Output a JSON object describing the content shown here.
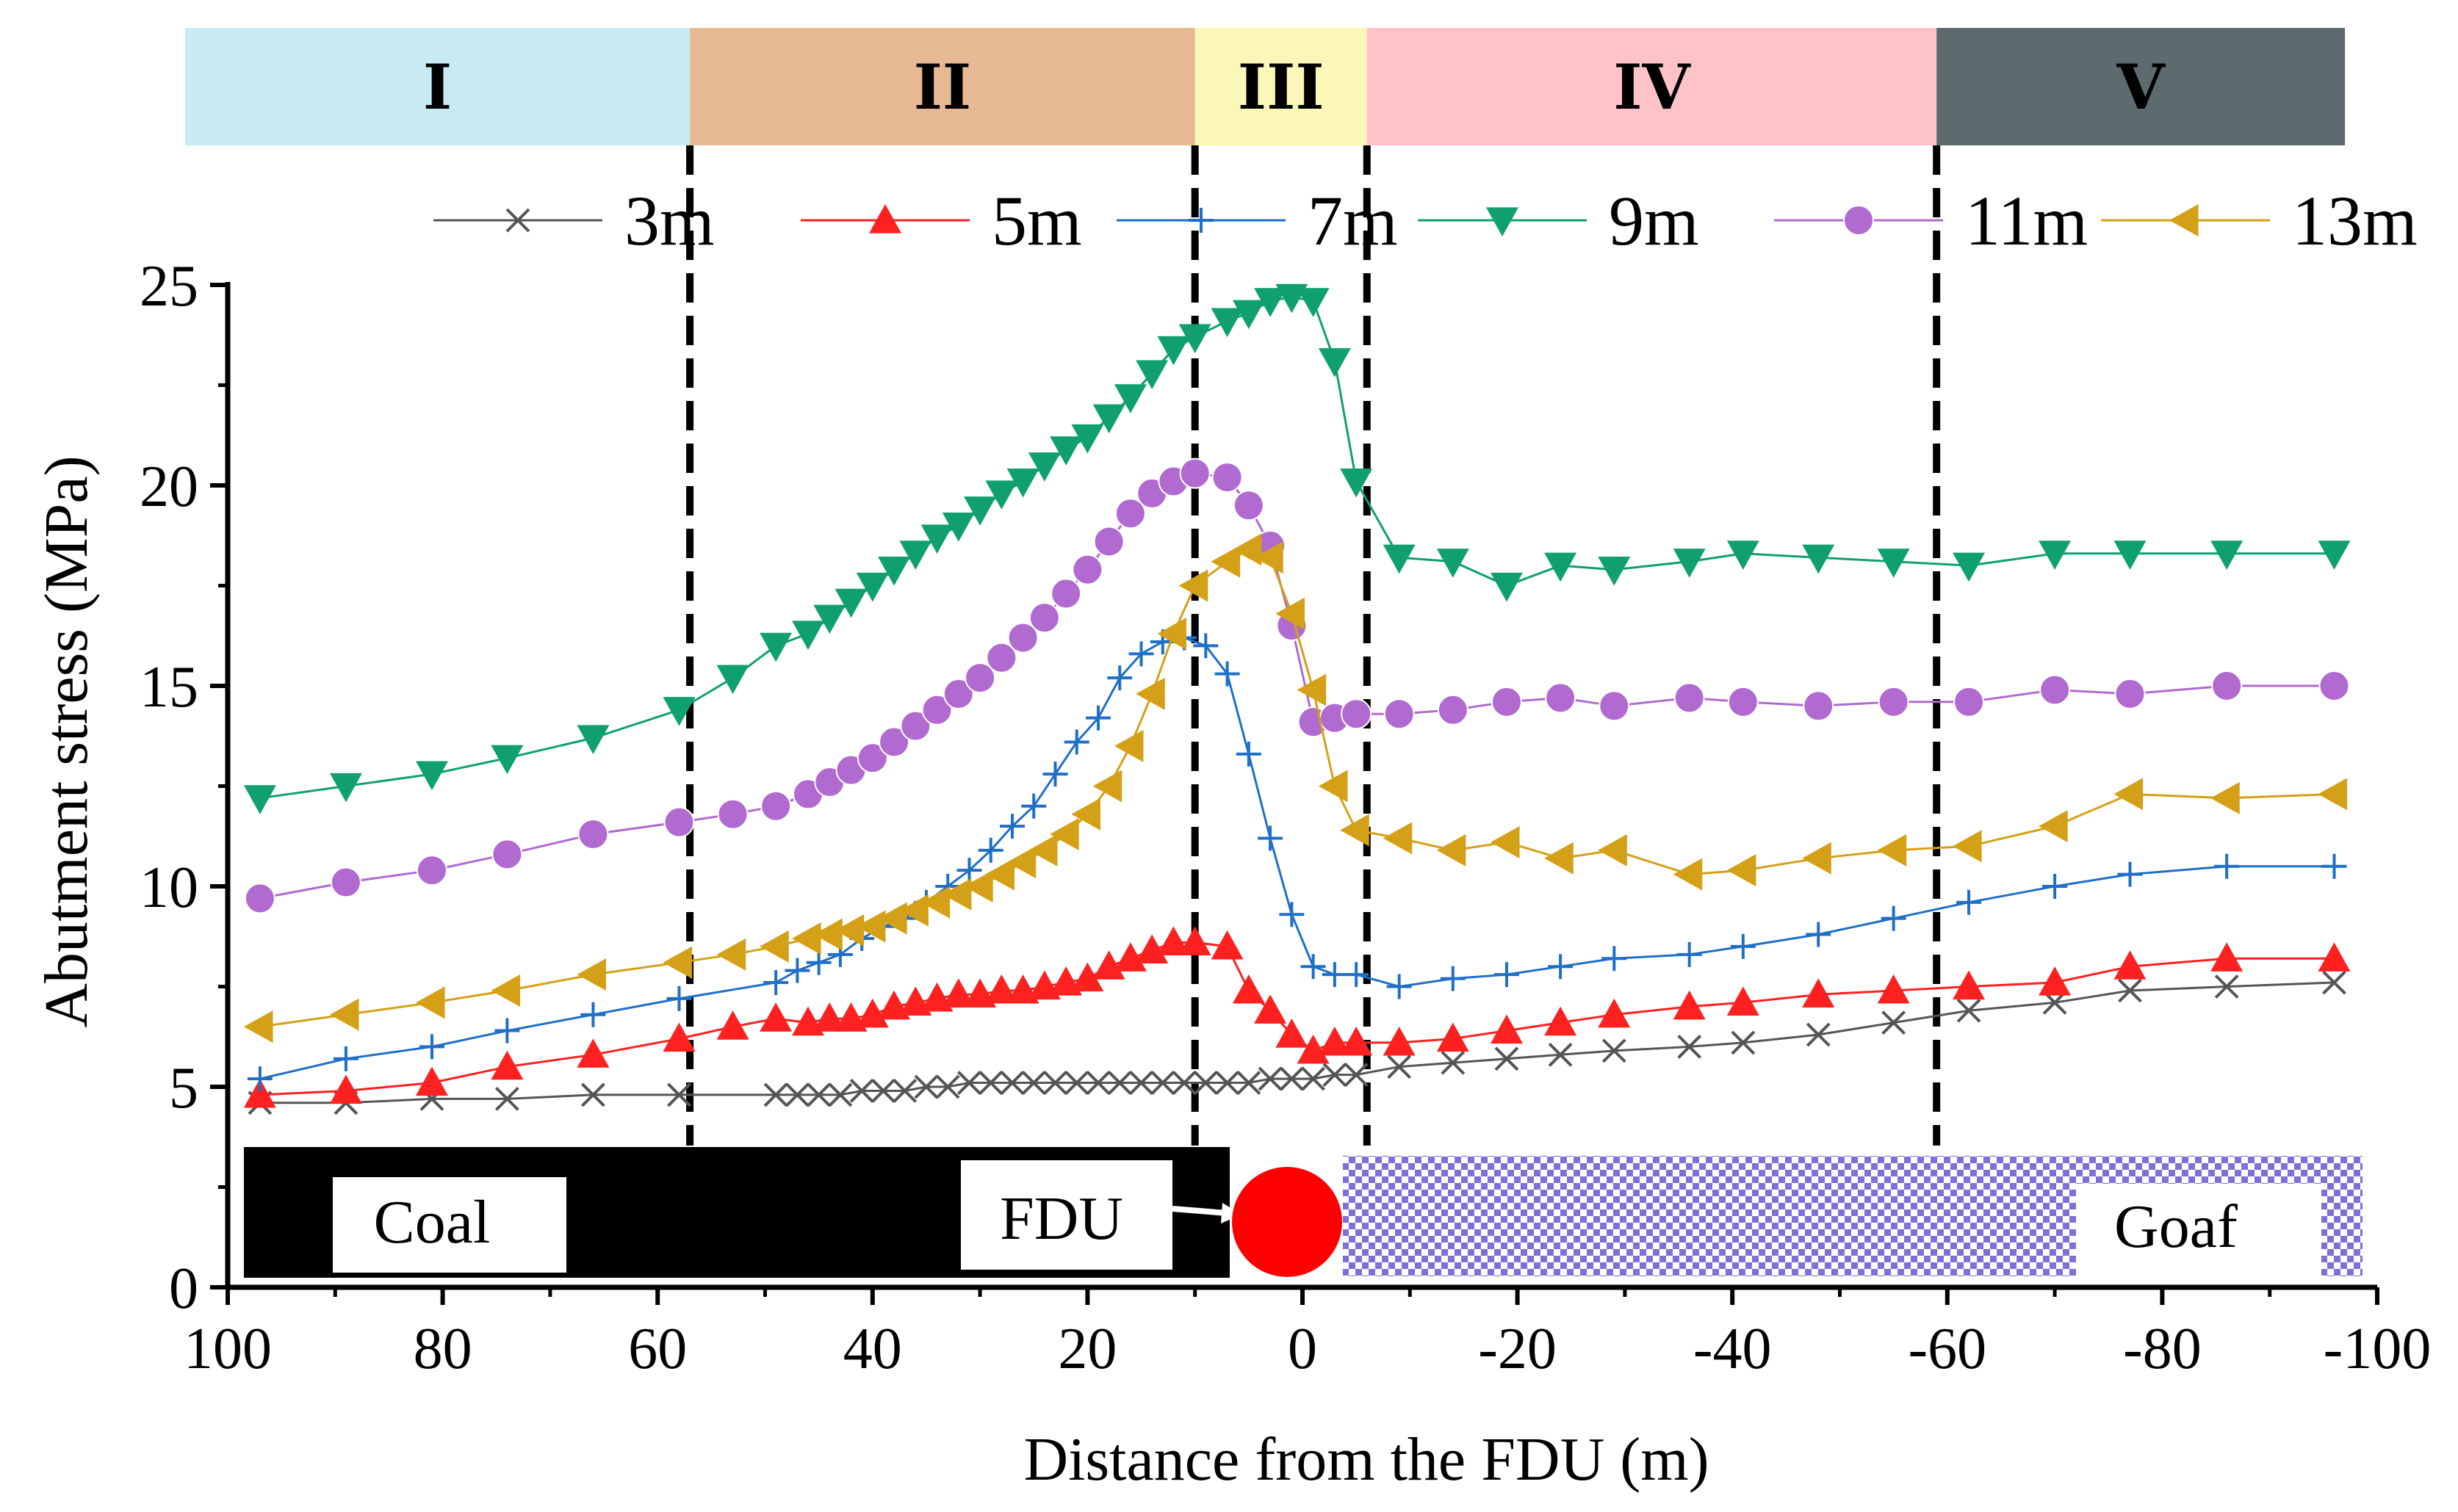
{
  "chart_data": {
    "type": "line",
    "title": "",
    "xlabel": "Distance from the FDU (m)",
    "ylabel": "Abutment stress (MPa)",
    "xlim": [
      100,
      -100
    ],
    "ylim": [
      0,
      25
    ],
    "x_ticks": [
      100,
      80,
      60,
      40,
      20,
      0,
      -20,
      -40,
      -60,
      -80,
      -100
    ],
    "y_ticks": [
      0,
      5,
      10,
      15,
      20,
      25
    ],
    "grid": false,
    "legend_position": "top",
    "zones": [
      {
        "label": "I",
        "x_start": 100,
        "x_end": 57,
        "color": "#c8ebf3"
      },
      {
        "label": "II",
        "x_start": 57,
        "x_end": 10,
        "color": "#e6b993"
      },
      {
        "label": "III",
        "x_start": 10,
        "x_end": -6,
        "color": "#fbf7b8"
      },
      {
        "label": "IV",
        "x_start": -6,
        "x_end": -59,
        "color": "#fec3c6"
      },
      {
        "label": "V",
        "x_start": -59,
        "x_end": -97,
        "color": "#5d6a6e"
      }
    ],
    "zone_boundaries": [
      57,
      10,
      -6,
      -59
    ],
    "annotations": {
      "coal_label": "Coal",
      "fdu_label": "FDU",
      "goaf_label": "Goaf"
    },
    "series": [
      {
        "name": "3m",
        "color": "#555555",
        "marker": "x",
        "x": [
          97,
          89,
          81,
          74,
          66,
          58,
          49,
          47,
          45,
          43,
          41,
          39,
          37,
          35,
          33,
          31,
          29,
          27,
          25,
          23,
          21,
          19,
          17,
          15,
          13,
          11,
          9,
          7,
          5,
          3,
          1,
          -1,
          -3,
          -5,
          -9,
          -14,
          -19,
          -24,
          -29,
          -36,
          -41,
          -48,
          -55,
          -62,
          -70,
          -77,
          -86,
          -96
        ],
        "values": [
          4.6,
          4.6,
          4.7,
          4.7,
          4.8,
          4.8,
          4.8,
          4.8,
          4.8,
          4.8,
          4.9,
          4.9,
          4.9,
          5.0,
          5.0,
          5.1,
          5.1,
          5.1,
          5.1,
          5.1,
          5.1,
          5.1,
          5.1,
          5.1,
          5.1,
          5.1,
          5.1,
          5.1,
          5.1,
          5.2,
          5.2,
          5.2,
          5.3,
          5.3,
          5.5,
          5.6,
          5.7,
          5.8,
          5.9,
          6.0,
          6.1,
          6.3,
          6.6,
          6.9,
          7.1,
          7.4,
          7.5,
          7.6
        ]
      },
      {
        "name": "5m",
        "color": "#ff2020",
        "marker": "triangle-up",
        "x": [
          97,
          89,
          81,
          74,
          66,
          58,
          53,
          49,
          46,
          44,
          42,
          40,
          38,
          36,
          34,
          32,
          30,
          28,
          26,
          24,
          22,
          20,
          18,
          16,
          14,
          12,
          10,
          7,
          5,
          3,
          1,
          -1,
          -3,
          -5,
          -9,
          -14,
          -19,
          -24,
          -29,
          -36,
          -41,
          -48,
          -55,
          -62,
          -70,
          -77,
          -86,
          -96
        ],
        "values": [
          4.8,
          4.9,
          5.1,
          5.5,
          5.8,
          6.2,
          6.5,
          6.7,
          6.6,
          6.7,
          6.7,
          6.8,
          7.0,
          7.1,
          7.2,
          7.3,
          7.3,
          7.4,
          7.4,
          7.5,
          7.6,
          7.7,
          8.0,
          8.2,
          8.4,
          8.6,
          8.6,
          8.5,
          7.4,
          6.9,
          6.3,
          5.9,
          6.1,
          6.1,
          6.1,
          6.2,
          6.4,
          6.6,
          6.8,
          7.0,
          7.1,
          7.3,
          7.4,
          7.5,
          7.6,
          8.0,
          8.2,
          8.2
        ]
      },
      {
        "name": "7m",
        "color": "#1f6fc8",
        "marker": "plus",
        "x": [
          97,
          89,
          81,
          74,
          66,
          58,
          49,
          47,
          45,
          43,
          41,
          39,
          37,
          35,
          33,
          31,
          29,
          27,
          25,
          23,
          21,
          19,
          17,
          15,
          13,
          11,
          9,
          7,
          5,
          3,
          1,
          -1,
          -3,
          -5,
          -9,
          -14,
          -19,
          -24,
          -29,
          -36,
          -41,
          -48,
          -55,
          -62,
          -70,
          -77,
          -86,
          -96
        ],
        "values": [
          5.2,
          5.7,
          6.0,
          6.4,
          6.8,
          7.2,
          7.6,
          7.9,
          8.1,
          8.3,
          8.7,
          9.0,
          9.2,
          9.6,
          10.0,
          10.4,
          10.9,
          11.5,
          12.0,
          12.8,
          13.6,
          14.2,
          15.2,
          15.8,
          16.1,
          16.2,
          16.0,
          15.3,
          13.3,
          11.2,
          9.3,
          8.0,
          7.8,
          7.8,
          7.5,
          7.7,
          7.8,
          8.0,
          8.2,
          8.3,
          8.5,
          8.8,
          9.2,
          9.6,
          10.0,
          10.3,
          10.5,
          10.5
        ]
      },
      {
        "name": "9m",
        "color": "#10a070",
        "marker": "triangle-down",
        "x": [
          97,
          89,
          81,
          74,
          66,
          58,
          53,
          49,
          46,
          44,
          42,
          40,
          38,
          36,
          34,
          32,
          30,
          28,
          26,
          24,
          22,
          20,
          18,
          16,
          14,
          12,
          10,
          7,
          5,
          3,
          1,
          -1,
          -3,
          -5,
          -9,
          -14,
          -19,
          -24,
          -29,
          -36,
          -41,
          -48,
          -55,
          -62,
          -70,
          -77,
          -86,
          -96
        ],
        "values": [
          12.2,
          12.5,
          12.8,
          13.2,
          13.7,
          14.4,
          15.2,
          16.0,
          16.3,
          16.7,
          17.1,
          17.5,
          17.9,
          18.3,
          18.7,
          19.0,
          19.4,
          19.8,
          20.1,
          20.5,
          20.9,
          21.2,
          21.7,
          22.2,
          22.8,
          23.4,
          23.7,
          24.1,
          24.3,
          24.6,
          24.7,
          24.6,
          23.1,
          20.1,
          18.2,
          18.1,
          17.5,
          18.0,
          17.9,
          18.1,
          18.3,
          18.2,
          18.1,
          18.0,
          18.3,
          18.3,
          18.3,
          18.3
        ]
      },
      {
        "name": "11m",
        "color": "#b06ad0",
        "marker": "circle",
        "x": [
          97,
          89,
          81,
          74,
          66,
          58,
          53,
          49,
          46,
          44,
          42,
          40,
          38,
          36,
          34,
          32,
          30,
          28,
          26,
          24,
          22,
          20,
          18,
          16,
          14,
          12,
          10,
          7,
          5,
          3,
          1,
          -1,
          -3,
          -5,
          -9,
          -14,
          -19,
          -24,
          -29,
          -36,
          -41,
          -48,
          -55,
          -62,
          -70,
          -77,
          -86,
          -96
        ],
        "values": [
          9.7,
          10.1,
          10.4,
          10.8,
          11.3,
          11.6,
          11.8,
          12.0,
          12.3,
          12.6,
          12.9,
          13.2,
          13.6,
          14.0,
          14.4,
          14.8,
          15.2,
          15.7,
          16.2,
          16.7,
          17.3,
          17.9,
          18.6,
          19.3,
          19.8,
          20.1,
          20.3,
          20.2,
          19.5,
          18.5,
          16.5,
          14.1,
          14.2,
          14.3,
          14.3,
          14.4,
          14.6,
          14.7,
          14.5,
          14.7,
          14.6,
          14.5,
          14.6,
          14.6,
          14.9,
          14.8,
          15.0,
          15.0
        ]
      },
      {
        "name": "13m",
        "color": "#d4a017",
        "marker": "triangle-left",
        "x": [
          97,
          89,
          81,
          74,
          66,
          58,
          53,
          49,
          46,
          44,
          42,
          40,
          38,
          36,
          34,
          32,
          30,
          28,
          26,
          24,
          22,
          20,
          18,
          16,
          14,
          12,
          10,
          7,
          5,
          3,
          1,
          -1,
          -3,
          -5,
          -9,
          -14,
          -19,
          -24,
          -29,
          -36,
          -41,
          -48,
          -55,
          -62,
          -70,
          -77,
          -86,
          -96
        ],
        "values": [
          6.5,
          6.8,
          7.1,
          7.4,
          7.8,
          8.1,
          8.3,
          8.5,
          8.7,
          8.8,
          8.9,
          9.0,
          9.2,
          9.4,
          9.6,
          9.8,
          10.0,
          10.3,
          10.6,
          10.9,
          11.3,
          11.8,
          12.5,
          13.5,
          14.8,
          16.3,
          17.5,
          18.1,
          18.4,
          18.2,
          16.8,
          14.9,
          12.5,
          11.4,
          11.2,
          10.9,
          11.1,
          10.7,
          10.9,
          10.3,
          10.4,
          10.7,
          10.9,
          11.0,
          11.5,
          12.3,
          12.2,
          12.3
        ]
      }
    ]
  }
}
